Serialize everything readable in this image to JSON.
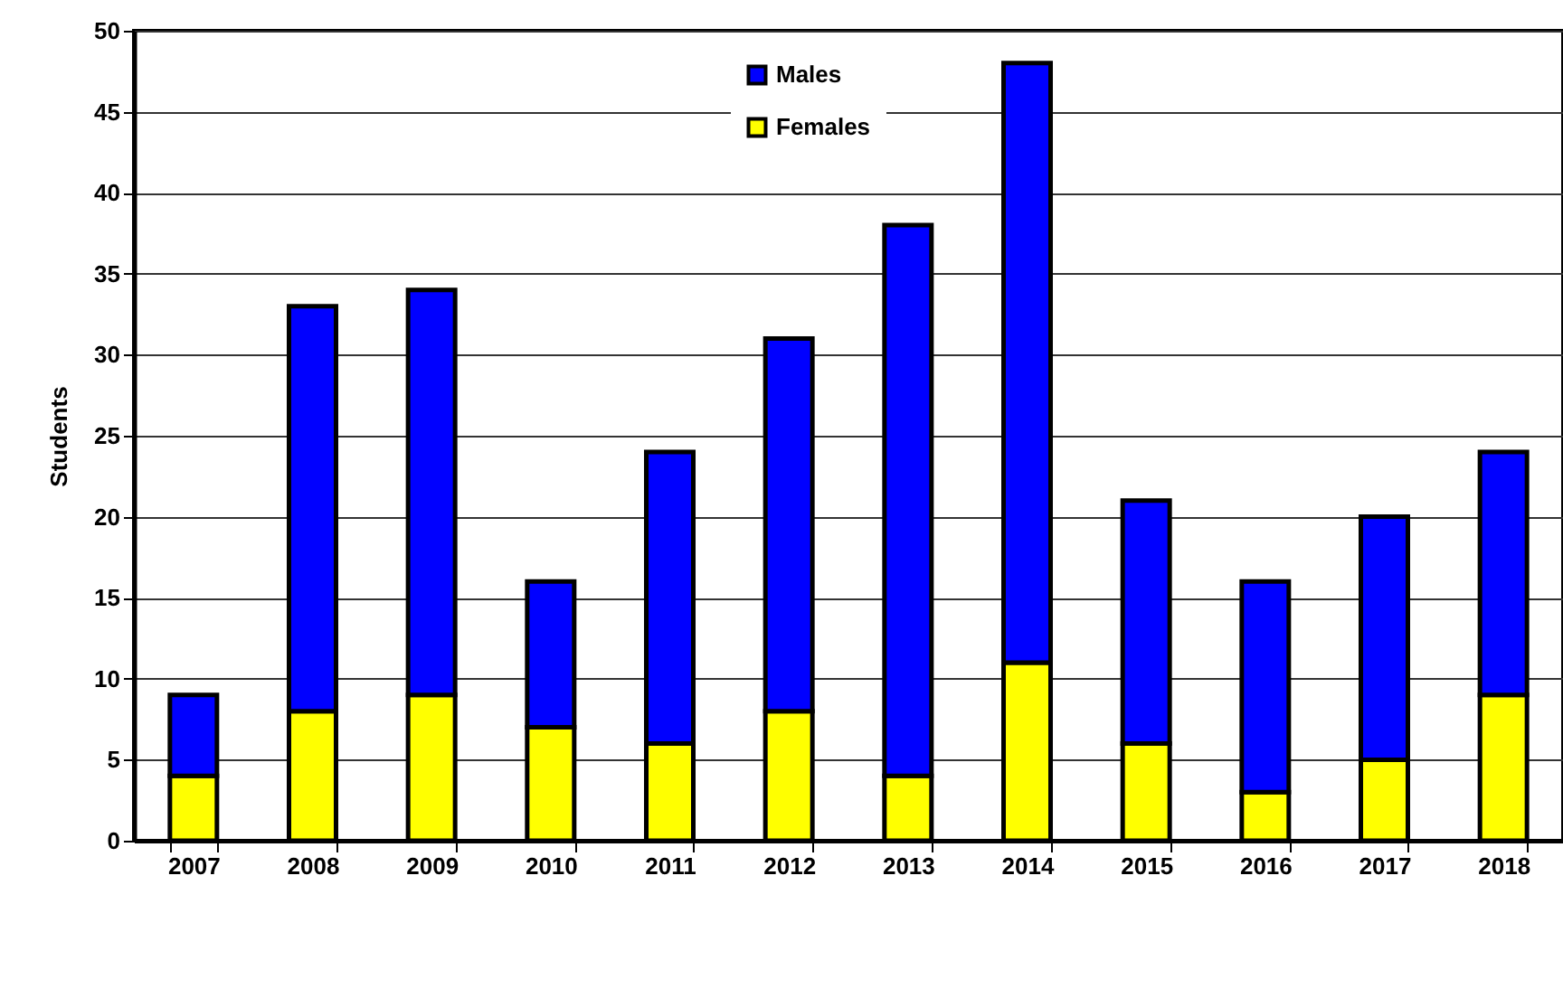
{
  "chart_data": {
    "type": "bar",
    "stacked": true,
    "ylabel": "Students",
    "categories": [
      "2007",
      "2008",
      "2009",
      "2010",
      "2011",
      "2012",
      "2013",
      "2014",
      "2015",
      "2016",
      "2017",
      "2018"
    ],
    "series": [
      {
        "name": "Females",
        "color": "#ffff00",
        "values": [
          4,
          8,
          9,
          7,
          6,
          8,
          4,
          11,
          6,
          3,
          5,
          9
        ]
      },
      {
        "name": "Males",
        "color": "#0000ff",
        "values": [
          5,
          25,
          25,
          9,
          18,
          23,
          34,
          37,
          15,
          13,
          15,
          15
        ]
      }
    ],
    "ylim": [
      0,
      50
    ],
    "yticks": [
      0,
      5,
      10,
      15,
      20,
      25,
      30,
      35,
      40,
      45,
      50
    ],
    "grid": "y",
    "legend": "top"
  }
}
